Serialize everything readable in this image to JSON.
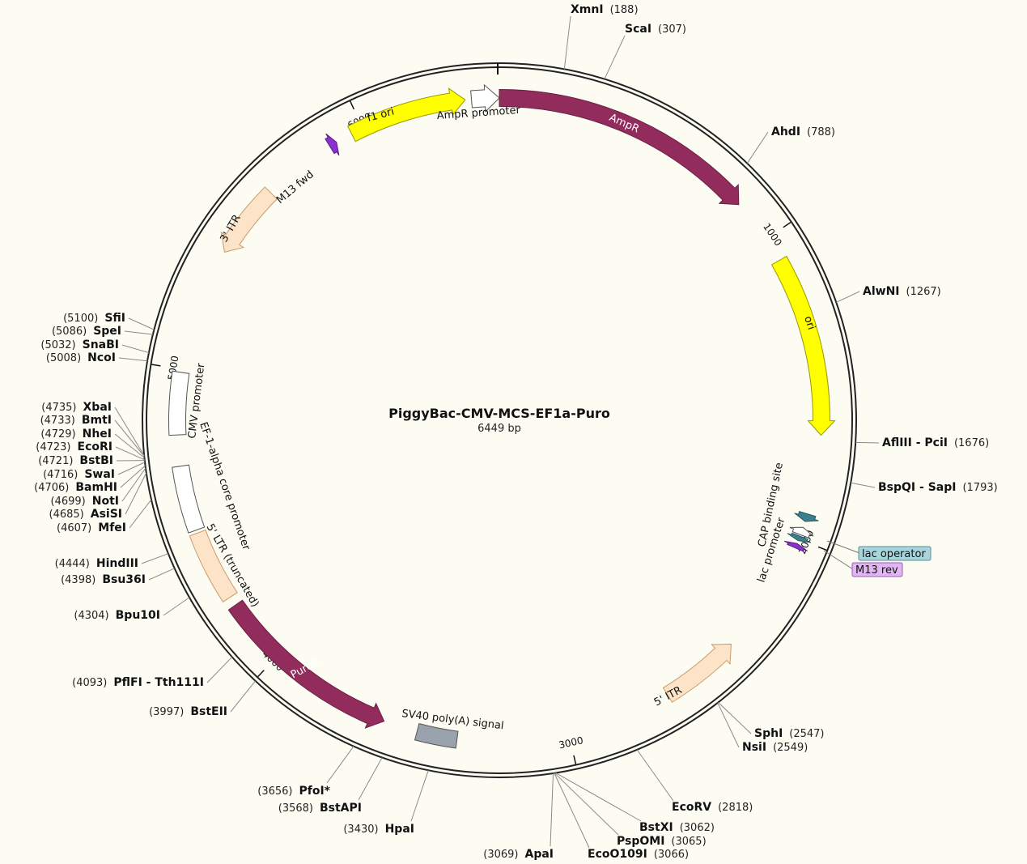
{
  "plasmid": {
    "name": "PiggyBac-CMV-MCS-EF1a-Puro",
    "length_label": "6449 bp",
    "length": 6449
  },
  "ticks": [
    {
      "pos": 1000,
      "label": "1000"
    },
    {
      "pos": 2000,
      "label": "2000"
    },
    {
      "pos": 3000,
      "label": "3000"
    },
    {
      "pos": 4000,
      "label": "4000"
    },
    {
      "pos": 5000,
      "label": "5000"
    },
    {
      "pos": 6000,
      "label": "6000"
    }
  ],
  "features": [
    {
      "label": "AmpR",
      "start": 0,
      "end": 860,
      "dir": 1,
      "color": "#922c5c",
      "stroke": "#6b1f44",
      "text_color": "#ffffff",
      "label_inside": true
    },
    {
      "label": "AmpR promoter",
      "start": 6360,
      "end": 6449,
      "dir": 1,
      "color": "#ffffff",
      "stroke": "#555555",
      "label_inside": false
    },
    {
      "label": "ori",
      "start": 1080,
      "end": 1660,
      "dir": 1,
      "color": "#ffff00",
      "stroke": "#9a9a00",
      "text_color": "#111111",
      "label_inside": true
    },
    {
      "label": "CAP binding site",
      "start": 1915,
      "end": 1940,
      "dir": 1,
      "color": "#3c7f8f",
      "stroke": "#245560",
      "label_inside": false
    },
    {
      "label": "lac promoter",
      "start": 1960,
      "end": 1985,
      "dir": -1,
      "color": "#ffffff",
      "stroke": "#555555",
      "label_inside": false
    },
    {
      "label": "lac operator",
      "start": 1990,
      "end": 2005,
      "dir": 1,
      "color": "#3c7f8f",
      "stroke": "#245560",
      "label_inside": false
    },
    {
      "label": "M13 rev",
      "start": 2015,
      "end": 2030,
      "dir": -1,
      "color": "#8a2fd0",
      "stroke": "#5a1a8a",
      "label_inside": false
    },
    {
      "label": "5' ITR",
      "start": 2400,
      "end": 2660,
      "dir": -1,
      "color": "#fde3c8",
      "stroke": "#c99a6a",
      "text_color": "#111111",
      "label_inside": true
    },
    {
      "label": "SV40 poly(A) signal",
      "start": 3360,
      "end": 3490,
      "dir": 0,
      "color": "#9aa2ad",
      "stroke": "#555555",
      "label_inside": false
    },
    {
      "label": "PuroR",
      "start": 3600,
      "end": 4210,
      "dir": -1,
      "color": "#922c5c",
      "stroke": "#6b1f44",
      "text_color": "#ffffff",
      "label_inside": true
    },
    {
      "label": "5' LTR (truncated)",
      "start": 4240,
      "end": 4470,
      "dir": 0,
      "color": "#fde3c8",
      "stroke": "#c99a6a",
      "label_inside": false
    },
    {
      "label": "EF-1-alpha core promoter",
      "start": 4480,
      "end": 4690,
      "dir": 0,
      "color": "#ffffff",
      "stroke": "#555555",
      "label_inside": false
    },
    {
      "label": "CMV promoter",
      "start": 4790,
      "end": 4990,
      "dir": 0,
      "color": "#ffffff",
      "stroke": "#555555",
      "label_inside": false
    },
    {
      "label": "3' ITR",
      "start": 5400,
      "end": 5640,
      "dir": -1,
      "color": "#fde3c8",
      "stroke": "#c99a6a",
      "text_color": "#111111",
      "label_inside": true
    },
    {
      "label": "M13 fwd",
      "start": 5880,
      "end": 5905,
      "dir": 1,
      "color": "#8a2fd0",
      "stroke": "#5a1a8a",
      "label_inside": false
    },
    {
      "label": "f1 ori",
      "start": 5960,
      "end": 6340,
      "dir": 1,
      "color": "#ffff00",
      "stroke": "#9a9a00",
      "text_color": "#111111",
      "label_inside": true
    }
  ],
  "sites": [
    {
      "name": "XmnI",
      "pos": "(188)",
      "bp": 188
    },
    {
      "name": "ScaI",
      "pos": "(307)",
      "bp": 307
    },
    {
      "name": "AhdI",
      "pos": "(788)",
      "bp": 788
    },
    {
      "name": "AlwNI",
      "pos": "(1267)",
      "bp": 1267
    },
    {
      "name": "AflIII - PciI",
      "pos": "(1676)",
      "bp": 1676
    },
    {
      "name": "BspQI - SapI",
      "pos": "(1793)",
      "bp": 1793
    },
    {
      "name": "SphI",
      "pos": "(2547)",
      "bp": 2547
    },
    {
      "name": "NsiI",
      "pos": "(2549)",
      "bp": 2549
    },
    {
      "name": "EcoRV",
      "pos": "(2818)",
      "bp": 2818
    },
    {
      "name": "BstXI",
      "pos": "(3062)",
      "bp": 3062
    },
    {
      "name": "PspOMI",
      "pos": "(3065)",
      "bp": 3065
    },
    {
      "name": "EcoO109I",
      "pos": "(3066)",
      "bp": 3066
    },
    {
      "name": "ApaI",
      "pos": "(3069)",
      "bp": 3069
    },
    {
      "name": "HpaI",
      "pos": "(3430)",
      "bp": 3430
    },
    {
      "name": "BstAPI",
      "pos": "(3568)",
      "bp": 3568
    },
    {
      "name": "PfoI*",
      "pos": "(3656)",
      "bp": 3656
    },
    {
      "name": "BstEII",
      "pos": "(3997)",
      "bp": 3997
    },
    {
      "name": "PflFI - Tth111I",
      "pos": "(4093)",
      "bp": 4093
    },
    {
      "name": "Bpu10I",
      "pos": "(4304)",
      "bp": 4304
    },
    {
      "name": "Bsu36I",
      "pos": "(4398)",
      "bp": 4398
    },
    {
      "name": "HindIII",
      "pos": "(4444)",
      "bp": 4444
    },
    {
      "name": "MfeI",
      "pos": "(4607)",
      "bp": 4607
    },
    {
      "name": "AsiSI",
      "pos": "(4685)",
      "bp": 4685
    },
    {
      "name": "NotI",
      "pos": "(4699)",
      "bp": 4699
    },
    {
      "name": "BamHI",
      "pos": "(4706)",
      "bp": 4706
    },
    {
      "name": "SwaI",
      "pos": "(4716)",
      "bp": 4716
    },
    {
      "name": "BstBI",
      "pos": "(4721)",
      "bp": 4721
    },
    {
      "name": "EcoRI",
      "pos": "(4723)",
      "bp": 4723
    },
    {
      "name": "NheI",
      "pos": "(4729)",
      "bp": 4729
    },
    {
      "name": "BmtI",
      "pos": "(4733)",
      "bp": 4733
    },
    {
      "name": "XbaI",
      "pos": "(4735)",
      "bp": 4735
    },
    {
      "name": "NcoI",
      "pos": "(5008)",
      "bp": 5008
    },
    {
      "name": "SnaBI",
      "pos": "(5032)",
      "bp": 5032
    },
    {
      "name": "SpeI",
      "pos": "(5086)",
      "bp": 5086
    },
    {
      "name": "SfiI",
      "pos": "(5100)",
      "bp": 5100
    }
  ],
  "badges": [
    {
      "label": "lac operator",
      "color": "#a8d4dc",
      "stroke": "#5a8f99"
    },
    {
      "label": "M13 rev",
      "color": "#e2b6f2",
      "stroke": "#9a5ab8"
    }
  ]
}
